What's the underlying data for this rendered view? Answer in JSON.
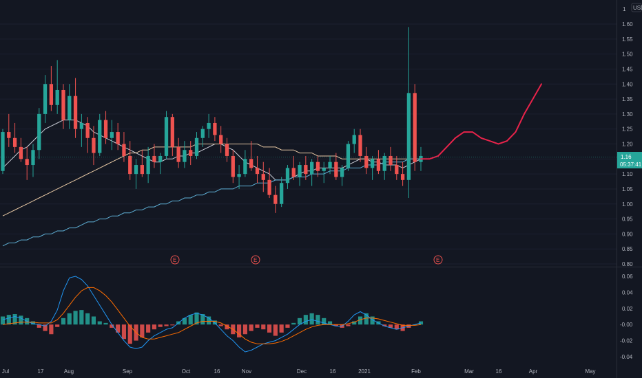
{
  "currency_label": "USD",
  "price_tag": {
    "price": "1.16",
    "countdown": "05:37:41"
  },
  "earnings_marker": "E",
  "colors": {
    "background": "#131722",
    "up": "#26a69a",
    "down": "#ef5350",
    "ma_fast": "#c9ccd6",
    "ma_slow": "#e8c9a5",
    "ma_long": "#5fb0d6",
    "projection": "#e8234a",
    "macd_line": "#2196f3",
    "signal_line": "#ff6d00",
    "hist_up": "#26a69a",
    "hist_down": "#ef5350"
  },
  "chart_data": [
    {
      "type": "candlestick",
      "title": "",
      "ylim": [
        0.8,
        1.65
      ],
      "y_ticks": [
        "1.60",
        "1.55",
        "1.50",
        "1.45",
        "1.40",
        "1.35",
        "1.30",
        "1.25",
        "1.20",
        "1.15",
        "1.10",
        "1.05",
        "1.00",
        "0.95",
        "0.90",
        "0.85",
        "0.80"
      ],
      "y_top_tick": "1",
      "x_ticks": [
        "Jul",
        "17",
        "Aug",
        "Sep",
        "Oct",
        "16",
        "Nov",
        "Dec",
        "16",
        "2021",
        "Feb",
        "Mar",
        "16",
        "Apr",
        "May"
      ],
      "candles": [
        [
          1.11,
          1.25,
          1.1,
          1.24
        ],
        [
          1.24,
          1.3,
          1.19,
          1.22
        ],
        [
          1.22,
          1.27,
          1.17,
          1.19
        ],
        [
          1.19,
          1.22,
          1.14,
          1.15
        ],
        [
          1.15,
          1.19,
          1.08,
          1.13
        ],
        [
          1.13,
          1.2,
          1.09,
          1.18
        ],
        [
          1.18,
          1.32,
          1.15,
          1.3
        ],
        [
          1.3,
          1.43,
          1.27,
          1.4
        ],
        [
          1.4,
          1.46,
          1.31,
          1.33
        ],
        [
          1.33,
          1.48,
          1.3,
          1.38
        ],
        [
          1.38,
          1.4,
          1.25,
          1.28
        ],
        [
          1.28,
          1.4,
          1.25,
          1.36
        ],
        [
          1.36,
          1.42,
          1.22,
          1.25
        ],
        [
          1.25,
          1.3,
          1.19,
          1.27
        ],
        [
          1.27,
          1.29,
          1.17,
          1.22
        ],
        [
          1.22,
          1.26,
          1.13,
          1.17
        ],
        [
          1.17,
          1.3,
          1.16,
          1.28
        ],
        [
          1.28,
          1.31,
          1.2,
          1.22
        ],
        [
          1.22,
          1.28,
          1.18,
          1.24
        ],
        [
          1.24,
          1.27,
          1.18,
          1.2
        ],
        [
          1.2,
          1.24,
          1.14,
          1.16
        ],
        [
          1.16,
          1.21,
          1.08,
          1.1
        ],
        [
          1.1,
          1.15,
          1.05,
          1.13
        ],
        [
          1.13,
          1.18,
          1.09,
          1.1
        ],
        [
          1.1,
          1.19,
          1.07,
          1.16
        ],
        [
          1.16,
          1.2,
          1.12,
          1.14
        ],
        [
          1.14,
          1.17,
          1.1,
          1.16
        ],
        [
          1.16,
          1.31,
          1.15,
          1.29
        ],
        [
          1.29,
          1.3,
          1.16,
          1.19
        ],
        [
          1.19,
          1.22,
          1.12,
          1.14
        ],
        [
          1.14,
          1.21,
          1.12,
          1.18
        ],
        [
          1.18,
          1.21,
          1.13,
          1.16
        ],
        [
          1.16,
          1.24,
          1.15,
          1.22
        ],
        [
          1.22,
          1.26,
          1.19,
          1.25
        ],
        [
          1.25,
          1.3,
          1.22,
          1.27
        ],
        [
          1.27,
          1.29,
          1.21,
          1.23
        ],
        [
          1.23,
          1.26,
          1.17,
          1.2
        ],
        [
          1.2,
          1.22,
          1.14,
          1.16
        ],
        [
          1.16,
          1.18,
          1.07,
          1.09
        ],
        [
          1.09,
          1.13,
          1.05,
          1.1
        ],
        [
          1.1,
          1.18,
          1.09,
          1.15
        ],
        [
          1.15,
          1.21,
          1.11,
          1.12
        ],
        [
          1.12,
          1.16,
          1.07,
          1.1
        ],
        [
          1.1,
          1.14,
          1.04,
          1.08
        ],
        [
          1.08,
          1.12,
          1.02,
          1.03
        ],
        [
          1.03,
          1.06,
          0.97,
          1.0
        ],
        [
          1.0,
          1.09,
          0.99,
          1.07
        ],
        [
          1.07,
          1.13,
          1.05,
          1.12
        ],
        [
          1.12,
          1.16,
          1.08,
          1.09
        ],
        [
          1.09,
          1.14,
          1.06,
          1.13
        ],
        [
          1.13,
          1.16,
          1.08,
          1.1
        ],
        [
          1.1,
          1.15,
          1.06,
          1.14
        ],
        [
          1.14,
          1.16,
          1.09,
          1.11
        ],
        [
          1.11,
          1.14,
          1.07,
          1.12
        ],
        [
          1.12,
          1.16,
          1.1,
          1.14
        ],
        [
          1.14,
          1.17,
          1.08,
          1.09
        ],
        [
          1.09,
          1.13,
          1.06,
          1.12
        ],
        [
          1.12,
          1.21,
          1.11,
          1.2
        ],
        [
          1.2,
          1.25,
          1.17,
          1.23
        ],
        [
          1.23,
          1.25,
          1.14,
          1.16
        ],
        [
          1.16,
          1.19,
          1.1,
          1.12
        ],
        [
          1.12,
          1.16,
          1.08,
          1.15
        ],
        [
          1.15,
          1.18,
          1.1,
          1.11
        ],
        [
          1.11,
          1.17,
          1.08,
          1.16
        ],
        [
          1.16,
          1.19,
          1.11,
          1.13
        ],
        [
          1.13,
          1.16,
          1.08,
          1.1
        ],
        [
          1.1,
          1.14,
          1.06,
          1.08
        ],
        [
          1.08,
          1.59,
          1.02,
          1.37
        ],
        [
          1.37,
          1.4,
          1.11,
          1.14
        ],
        [
          1.14,
          1.19,
          1.11,
          1.16
        ]
      ],
      "moving_averages": [
        {
          "key": "ma_fast",
          "values": [
            1.12,
            1.14,
            1.16,
            1.18,
            1.19,
            1.21,
            1.23,
            1.25,
            1.26,
            1.27,
            1.28,
            1.28,
            1.28,
            1.27,
            1.26,
            1.24,
            1.23,
            1.22,
            1.21,
            1.2,
            1.19,
            1.18,
            1.17,
            1.16,
            1.15,
            1.14,
            1.14,
            1.15,
            1.15,
            1.16,
            1.16,
            1.17,
            1.17,
            1.18,
            1.19,
            1.2,
            1.2,
            1.19,
            1.18,
            1.16,
            1.14,
            1.13,
            1.12,
            1.11,
            1.1,
            1.08,
            1.08,
            1.08,
            1.09,
            1.1,
            1.11,
            1.11,
            1.12,
            1.12,
            1.12,
            1.12,
            1.12,
            1.13,
            1.14,
            1.15,
            1.15,
            1.14,
            1.14,
            1.13,
            1.13,
            1.13,
            1.12,
            1.13,
            1.14,
            1.15
          ]
        },
        {
          "key": "ma_slow",
          "values": [
            0.96,
            0.97,
            0.98,
            0.99,
            1.0,
            1.01,
            1.02,
            1.03,
            1.04,
            1.05,
            1.06,
            1.07,
            1.08,
            1.09,
            1.1,
            1.11,
            1.12,
            1.13,
            1.14,
            1.15,
            1.16,
            1.17,
            1.17,
            1.18,
            1.18,
            1.19,
            1.19,
            1.19,
            1.19,
            1.19,
            1.19,
            1.19,
            1.2,
            1.2,
            1.2,
            1.2,
            1.2,
            1.2,
            1.2,
            1.2,
            1.2,
            1.2,
            1.2,
            1.19,
            1.19,
            1.19,
            1.18,
            1.18,
            1.18,
            1.17,
            1.17,
            1.17,
            1.16,
            1.16,
            1.16,
            1.16,
            1.15,
            1.15,
            1.15,
            1.15,
            1.15,
            1.15,
            1.15,
            1.15,
            1.15,
            1.15,
            1.15,
            1.15,
            1.15,
            1.15
          ]
        },
        {
          "key": "ma_long",
          "values": [
            0.86,
            0.87,
            0.87,
            0.88,
            0.88,
            0.89,
            0.89,
            0.9,
            0.9,
            0.91,
            0.91,
            0.92,
            0.92,
            0.93,
            0.94,
            0.94,
            0.95,
            0.95,
            0.96,
            0.96,
            0.97,
            0.97,
            0.98,
            0.98,
            0.99,
            0.99,
            1.0,
            1.0,
            1.01,
            1.01,
            1.02,
            1.02,
            1.03,
            1.03,
            1.04,
            1.04,
            1.05,
            1.05,
            1.05,
            1.06,
            1.06,
            1.06,
            1.07,
            1.07,
            1.07,
            1.08,
            1.08,
            1.08,
            1.09,
            1.09,
            1.09,
            1.1,
            1.1,
            1.1,
            1.11,
            1.11,
            1.11,
            1.12,
            1.12,
            1.12,
            1.13,
            1.13,
            1.13,
            1.14,
            1.14,
            1.14,
            1.14,
            1.15,
            1.15,
            1.15
          ]
        }
      ],
      "projection": [
        1.15,
        1.15,
        1.16,
        1.19,
        1.22,
        1.24,
        1.24,
        1.22,
        1.21,
        1.2,
        1.21,
        1.24,
        1.3,
        1.35,
        1.4
      ]
    },
    {
      "type": "macd",
      "title": "",
      "ylim": [
        -0.045,
        0.07
      ],
      "y_ticks": [
        "0.06",
        "0.04",
        "0.02",
        "-0.00",
        "-0.02",
        "-0.04"
      ],
      "histogram": [
        0.01,
        0.012,
        0.013,
        0.011,
        0.008,
        0.004,
        -0.004,
        -0.008,
        -0.012,
        -0.003,
        0.008,
        0.014,
        0.017,
        0.018,
        0.014,
        0.01,
        0.004,
        0.002,
        -0.004,
        -0.01,
        -0.018,
        -0.024,
        -0.02,
        -0.016,
        -0.01,
        -0.006,
        -0.003,
        -0.002,
        -0.001,
        0.004,
        0.008,
        0.012,
        0.015,
        0.013,
        0.01,
        0.005,
        -0.002,
        -0.006,
        -0.012,
        -0.016,
        -0.012,
        -0.008,
        -0.004,
        -0.006,
        -0.01,
        -0.014,
        -0.01,
        -0.004,
        0.002,
        0.008,
        0.012,
        0.014,
        0.012,
        0.008,
        0.004,
        -0.002,
        -0.004,
        -0.002,
        0.004,
        0.01,
        0.014,
        0.01,
        0.004,
        -0.002,
        -0.004,
        -0.006,
        -0.008,
        -0.004,
        0.0,
        0.004
      ],
      "macd": [
        0.006,
        0.008,
        0.01,
        0.008,
        0.004,
        0.001,
        0.0,
        -0.002,
        0.004,
        0.018,
        0.042,
        0.058,
        0.06,
        0.056,
        0.048,
        0.036,
        0.024,
        0.012,
        0.0,
        -0.01,
        -0.02,
        -0.028,
        -0.03,
        -0.028,
        -0.02,
        -0.014,
        -0.01,
        -0.006,
        -0.004,
        0.002,
        0.008,
        0.012,
        0.014,
        0.012,
        0.008,
        0.002,
        -0.006,
        -0.014,
        -0.02,
        -0.028,
        -0.034,
        -0.032,
        -0.028,
        -0.024,
        -0.022,
        -0.02,
        -0.016,
        -0.012,
        -0.006,
        0.0,
        0.004,
        0.006,
        0.004,
        0.002,
        0.0,
        -0.002,
        -0.002,
        0.004,
        0.012,
        0.016,
        0.012,
        0.006,
        0.002,
        -0.002,
        -0.004,
        -0.006,
        -0.004,
        -0.002,
        0.0,
        0.002
      ],
      "signal": [
        0.0,
        0.001,
        0.002,
        0.003,
        0.003,
        0.003,
        0.002,
        0.002,
        0.002,
        0.006,
        0.014,
        0.024,
        0.034,
        0.042,
        0.046,
        0.046,
        0.042,
        0.036,
        0.028,
        0.018,
        0.008,
        -0.002,
        -0.01,
        -0.016,
        -0.018,
        -0.018,
        -0.016,
        -0.014,
        -0.012,
        -0.01,
        -0.006,
        -0.002,
        0.002,
        0.004,
        0.004,
        0.004,
        0.002,
        -0.002,
        -0.006,
        -0.012,
        -0.018,
        -0.022,
        -0.024,
        -0.024,
        -0.024,
        -0.023,
        -0.021,
        -0.018,
        -0.014,
        -0.01,
        -0.006,
        -0.003,
        -0.001,
        0.0,
        0.0,
        0.0,
        0.0,
        0.001,
        0.003,
        0.006,
        0.008,
        0.008,
        0.007,
        0.005,
        0.003,
        0.001,
        -0.001,
        -0.001,
        -0.001,
        0.0
      ]
    }
  ]
}
